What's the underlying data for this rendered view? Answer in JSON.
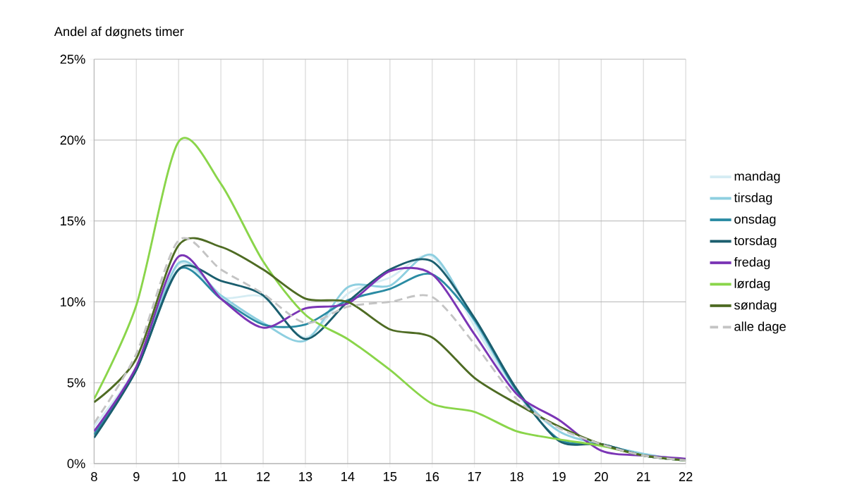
{
  "chart_data": {
    "type": "line",
    "ylabel": "Andel af døgnets timer",
    "x": [
      8,
      9,
      10,
      11,
      12,
      13,
      14,
      15,
      16,
      17,
      18,
      19,
      20,
      21,
      22
    ],
    "xlim": [
      8,
      22
    ],
    "xticks": [
      8,
      9,
      10,
      11,
      12,
      13,
      14,
      15,
      16,
      17,
      18,
      19,
      20,
      21,
      22
    ],
    "ylim": [
      0,
      25
    ],
    "yticks": [
      {
        "value": 0,
        "label": "0%"
      },
      {
        "value": 5,
        "label": "5%"
      },
      {
        "value": 10,
        "label": "10%"
      },
      {
        "value": 15,
        "label": "15%"
      },
      {
        "value": 20,
        "label": "20%"
      },
      {
        "value": 25,
        "label": "25%"
      }
    ],
    "grid": true,
    "legend": "right",
    "marker": "none",
    "series": [
      {
        "name": "mandag",
        "color": "#d5ecf3",
        "values": [
          2.3,
          6.0,
          12.3,
          10.3,
          10.3,
          7.8,
          10.5,
          11.5,
          12.8,
          8.5,
          4.3,
          2.0,
          1.2,
          0.6,
          0.2
        ]
      },
      {
        "name": "tirsdag",
        "color": "#8ecfe0",
        "values": [
          2.0,
          5.8,
          12.4,
          10.4,
          8.7,
          7.6,
          10.9,
          11.0,
          12.9,
          8.8,
          4.5,
          2.0,
          1.2,
          0.6,
          0.2
        ]
      },
      {
        "name": "onsdag",
        "color": "#2a8ba3",
        "values": [
          1.8,
          5.8,
          12.0,
          10.2,
          8.6,
          8.6,
          10.1,
          10.8,
          11.7,
          8.9,
          4.5,
          1.5,
          1.2,
          0.5,
          0.2
        ]
      },
      {
        "name": "torsdag",
        "color": "#1b5e6e",
        "values": [
          1.6,
          5.8,
          12.0,
          11.3,
          10.4,
          7.7,
          10.0,
          12.0,
          12.5,
          9.0,
          4.6,
          1.4,
          1.2,
          0.5,
          0.2
        ]
      },
      {
        "name": "fredag",
        "color": "#7b35b5",
        "values": [
          2.0,
          6.0,
          12.8,
          10.2,
          8.4,
          9.6,
          9.9,
          11.9,
          11.7,
          8.0,
          4.3,
          2.7,
          0.8,
          0.5,
          0.3
        ]
      },
      {
        "name": "lørdag",
        "color": "#8ad54a",
        "values": [
          4.0,
          9.8,
          19.9,
          17.3,
          12.5,
          9.2,
          7.7,
          5.8,
          3.7,
          3.2,
          2.0,
          1.5,
          1.1,
          0.5,
          0.2
        ]
      },
      {
        "name": "søndag",
        "color": "#4e6b23",
        "values": [
          3.8,
          6.5,
          13.5,
          13.4,
          12.0,
          10.2,
          10.0,
          8.3,
          7.8,
          5.3,
          3.7,
          2.3,
          1.2,
          0.5,
          0.2
        ]
      },
      {
        "name": "alle dage",
        "color": "#c4c4c4",
        "line_style": "dashed",
        "values": [
          2.5,
          6.8,
          13.8,
          12.0,
          10.5,
          8.7,
          9.7,
          10.0,
          10.3,
          7.4,
          4.0,
          2.2,
          1.2,
          0.5,
          0.2
        ]
      }
    ]
  }
}
